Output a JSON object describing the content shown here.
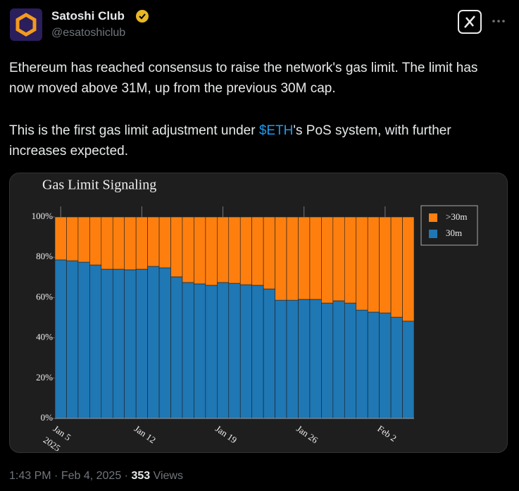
{
  "tweet": {
    "name": "Satoshi Club",
    "handle": "@esatoshiclub",
    "text_1": "Ethereum has reached consensus to raise the network's gas limit. The limit has now moved above 31M, up from the previous 30M cap.",
    "text_2_before": "This is the first gas limit adjustment under ",
    "text_2_link": "$ETH",
    "text_2_after": "'s PoS system, with further increases expected.",
    "time": "1:43 PM",
    "date": "Feb 4, 2025",
    "views": "353",
    "views_label": "Views"
  },
  "chart_data": {
    "type": "stacked_bar",
    "title": "Gas Limit Signaling",
    "x": [
      "2025-01-05",
      "2025-01-06",
      "2025-01-07",
      "2025-01-08",
      "2025-01-09",
      "2025-01-10",
      "2025-01-11",
      "2025-01-12",
      "2025-01-13",
      "2025-01-14",
      "2025-01-15",
      "2025-01-16",
      "2025-01-17",
      "2025-01-18",
      "2025-01-19",
      "2025-01-20",
      "2025-01-21",
      "2025-01-22",
      "2025-01-23",
      "2025-01-24",
      "2025-01-25",
      "2025-01-26",
      "2025-01-27",
      "2025-01-28",
      "2025-01-29",
      "2025-01-30",
      "2025-01-31",
      "2025-02-01",
      "2025-02-02",
      "2025-02-03",
      "2025-02-04"
    ],
    "series": [
      {
        "name": "30m",
        "color": "#1f77b4",
        "values": [
          78.7,
          78.3,
          77.6,
          76.2,
          74.1,
          74.1,
          73.8,
          74.1,
          75.5,
          74.8,
          70.3,
          67.5,
          66.8,
          66.1,
          67.5,
          67.1,
          66.4,
          66.1,
          64.3,
          58.7,
          58.7,
          59.1,
          59.1,
          57.3,
          58.4,
          57.3,
          53.8,
          52.8,
          52.4,
          50.3,
          48.3
        ]
      },
      {
        "name": ">30m",
        "color": "#ff7f0e",
        "values": [
          21.3,
          21.7,
          22.4,
          23.8,
          25.9,
          25.9,
          26.2,
          25.9,
          24.5,
          25.2,
          29.7,
          32.5,
          33.2,
          33.9,
          32.5,
          32.9,
          33.6,
          33.9,
          35.7,
          41.3,
          41.3,
          40.9,
          40.9,
          42.7,
          41.6,
          42.7,
          46.2,
          47.2,
          47.6,
          49.7,
          51.7
        ]
      }
    ],
    "ylim": [
      0,
      100
    ],
    "yticks": [
      {
        "value": 0,
        "label": "0%"
      },
      {
        "value": 20,
        "label": "20%"
      },
      {
        "value": 40,
        "label": "40%"
      },
      {
        "value": 60,
        "label": "60%"
      },
      {
        "value": 80,
        "label": "80%"
      },
      {
        "value": 100,
        "label": "100%"
      }
    ],
    "xticks": [
      {
        "value": "2025-01-05",
        "label": "Jan 5"
      },
      {
        "value": "2025-01-12",
        "label": "Jan 12"
      },
      {
        "value": "2025-01-19",
        "label": "Jan 19"
      },
      {
        "value": "2025-01-26",
        "label": "Jan 26"
      },
      {
        "value": "2025-02-02",
        "label": "Feb 2"
      }
    ],
    "xtick_year": "2025",
    "legend": "top-right"
  }
}
